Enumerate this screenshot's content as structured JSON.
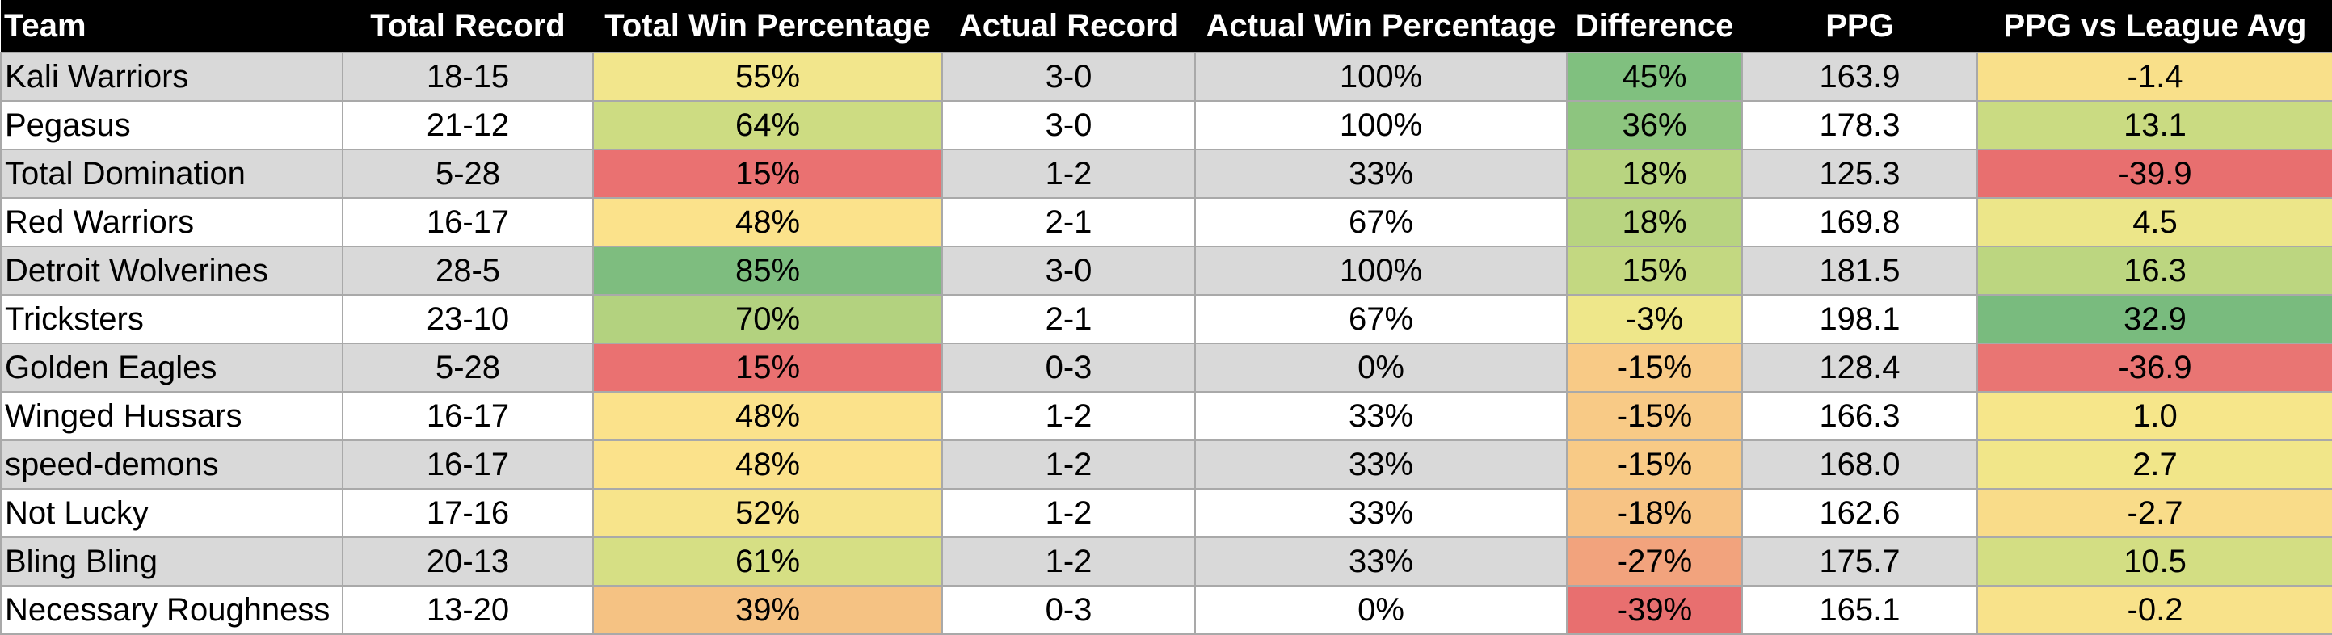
{
  "headers": [
    "Team",
    "Total Record",
    "Total Win Percentage",
    "Actual Record",
    "Actual Win Percentage",
    "Difference",
    "PPG",
    "PPG vs League Avg"
  ],
  "rows": [
    {
      "team": "Kali Warriors",
      "total_record": "18-15",
      "total_win_pct": "55%",
      "actual_record": "3-0",
      "actual_win_pct": "100%",
      "difference": "45%",
      "ppg": "163.9",
      "ppg_vs_avg": "-1.4",
      "colors": {
        "total_win_pct": "#f2e68c",
        "difference": "#80c07f",
        "ppg_vs_avg": "#f9e08a"
      }
    },
    {
      "team": "Pegasus",
      "total_record": "21-12",
      "total_win_pct": "64%",
      "actual_record": "3-0",
      "actual_win_pct": "100%",
      "difference": "36%",
      "ppg": "178.3",
      "ppg_vs_avg": "13.1",
      "colors": {
        "total_win_pct": "#cddc82",
        "difference": "#8dc57f",
        "ppg_vs_avg": "#cadb82"
      }
    },
    {
      "team": "Total Domination",
      "total_record": "5-28",
      "total_win_pct": "15%",
      "actual_record": "1-2",
      "actual_win_pct": "33%",
      "difference": "18%",
      "ppg": "125.3",
      "ppg_vs_avg": "-39.9",
      "colors": {
        "total_win_pct": "#ea7171",
        "difference": "#b8d480",
        "ppg_vs_avg": "#e86f6f"
      }
    },
    {
      "team": "Red Warriors",
      "total_record": "16-17",
      "total_win_pct": "48%",
      "actual_record": "2-1",
      "actual_win_pct": "67%",
      "difference": "18%",
      "ppg": "169.8",
      "ppg_vs_avg": "4.5",
      "colors": {
        "total_win_pct": "#fbe28b",
        "difference": "#b8d480",
        "ppg_vs_avg": "#ece689"
      }
    },
    {
      "team": "Detroit Wolverines",
      "total_record": "28-5",
      "total_win_pct": "85%",
      "actual_record": "3-0",
      "actual_win_pct": "100%",
      "difference": "15%",
      "ppg": "181.5",
      "ppg_vs_avg": "16.3",
      "colors": {
        "total_win_pct": "#7ebd7f",
        "difference": "#c3d881",
        "ppg_vs_avg": "#bcd680"
      }
    },
    {
      "team": "Tricksters",
      "total_record": "23-10",
      "total_win_pct": "70%",
      "actual_record": "2-1",
      "actual_win_pct": "67%",
      "difference": "-3%",
      "ppg": "198.1",
      "ppg_vs_avg": "32.9",
      "colors": {
        "total_win_pct": "#b3d27f",
        "difference": "#eee78a",
        "ppg_vs_avg": "#79bb7e"
      }
    },
    {
      "team": "Golden Eagles",
      "total_record": "5-28",
      "total_win_pct": "15%",
      "actual_record": "0-3",
      "actual_win_pct": "0%",
      "difference": "-15%",
      "ppg": "128.4",
      "ppg_vs_avg": "-36.9",
      "colors": {
        "total_win_pct": "#ea7171",
        "difference": "#f8ca86",
        "ppg_vs_avg": "#e97573"
      }
    },
    {
      "team": "Winged Hussars",
      "total_record": "16-17",
      "total_win_pct": "48%",
      "actual_record": "1-2",
      "actual_win_pct": "33%",
      "difference": "-15%",
      "ppg": "166.3",
      "ppg_vs_avg": "1.0",
      "colors": {
        "total_win_pct": "#fbe28b",
        "difference": "#f8ca86",
        "ppg_vs_avg": "#f6e68a"
      }
    },
    {
      "team": "speed-demons",
      "total_record": "16-17",
      "total_win_pct": "48%",
      "actual_record": "1-2",
      "actual_win_pct": "33%",
      "difference": "-15%",
      "ppg": "168.0",
      "ppg_vs_avg": "2.7",
      "colors": {
        "total_win_pct": "#fbe28b",
        "difference": "#f8ca86",
        "ppg_vs_avg": "#f1e689"
      }
    },
    {
      "team": "Not Lucky",
      "total_record": "17-16",
      "total_win_pct": "52%",
      "actual_record": "1-2",
      "actual_win_pct": "33%",
      "difference": "-18%",
      "ppg": "162.6",
      "ppg_vs_avg": "-2.7",
      "colors": {
        "total_win_pct": "#f7e48b",
        "difference": "#f7c384",
        "ppg_vs_avg": "#f9dc89"
      }
    },
    {
      "team": "Bling Bling",
      "total_record": "20-13",
      "total_win_pct": "61%",
      "actual_record": "1-2",
      "actual_win_pct": "33%",
      "difference": "-27%",
      "ppg": "175.7",
      "ppg_vs_avg": "10.5",
      "colors": {
        "total_win_pct": "#d6df84",
        "difference": "#f2a37d",
        "ppg_vs_avg": "#d3de83"
      }
    },
    {
      "team": "Necessary Roughness",
      "total_record": "13-20",
      "total_win_pct": "39%",
      "actual_record": "0-3",
      "actual_win_pct": "0%",
      "difference": "-39%",
      "ppg": "165.1",
      "ppg_vs_avg": "-0.2",
      "colors": {
        "total_win_pct": "#f5c283",
        "difference": "#e86f6f",
        "ppg_vs_avg": "#f8e28a"
      }
    }
  ]
}
